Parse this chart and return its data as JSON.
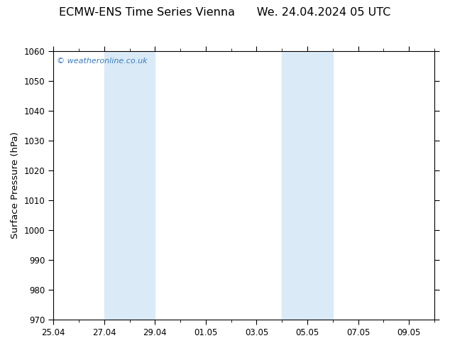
{
  "title": "ECMW-ENS Time Series Vienna      We. 24.04.2024 05 UTC",
  "ylabel": "Surface Pressure (hPa)",
  "ylim": [
    970,
    1060
  ],
  "yticks": [
    970,
    980,
    990,
    1000,
    1010,
    1020,
    1030,
    1040,
    1050,
    1060
  ],
  "x_start": 0,
  "x_end": 15,
  "x_major_ticks": [
    0,
    2,
    4,
    6,
    8,
    10,
    12,
    14
  ],
  "x_major_labels": [
    "25.04",
    "27.04",
    "29.04",
    "01.05",
    "03.05",
    "05.05",
    "07.05",
    "09.05"
  ],
  "x_minor_ticks": [
    0,
    1,
    2,
    3,
    4,
    5,
    6,
    7,
    8,
    9,
    10,
    11,
    12,
    13,
    14,
    15
  ],
  "shaded_regions": [
    {
      "x_start": 2,
      "x_end": 4,
      "color": "#daeaf7"
    },
    {
      "x_start": 9,
      "x_end": 11,
      "color": "#daeaf7"
    }
  ],
  "watermark_text": "© weatheronline.co.uk",
  "watermark_color": "#3a7bbf",
  "background_color": "#ffffff",
  "plot_bg_color": "#ffffff",
  "title_fontsize": 11.5,
  "tick_fontsize": 8.5,
  "ylabel_fontsize": 9.5,
  "watermark_fontsize": 8
}
